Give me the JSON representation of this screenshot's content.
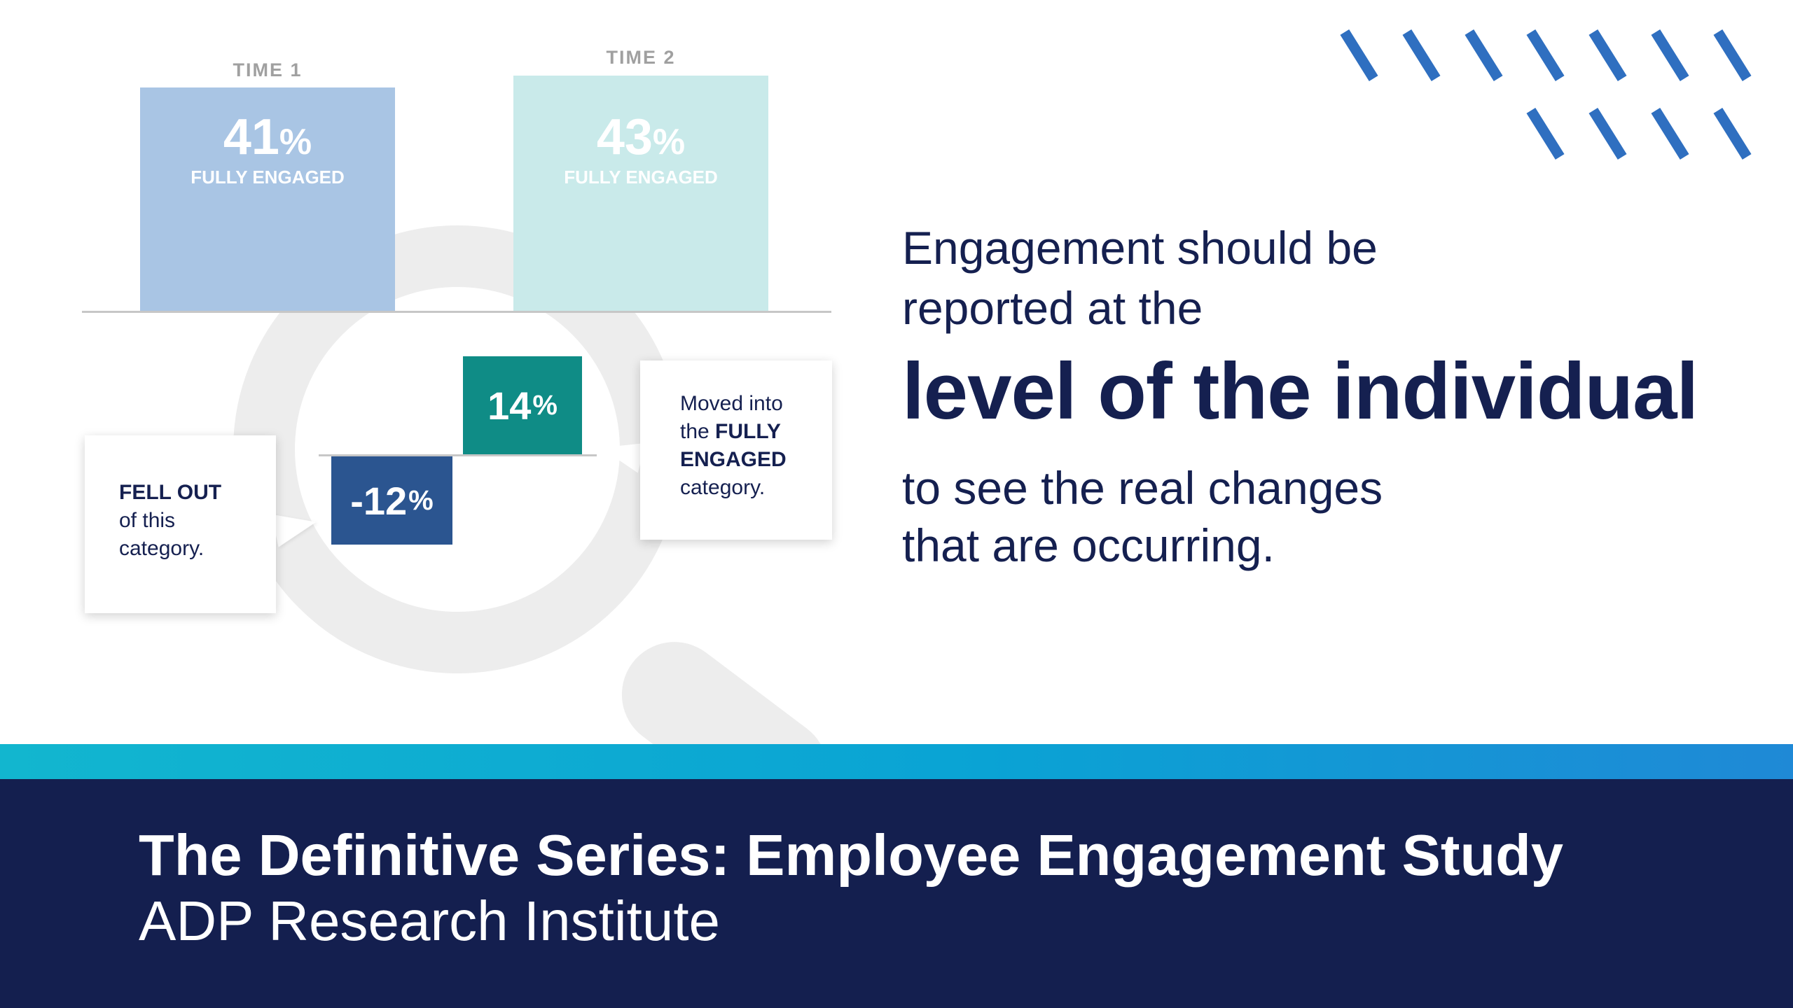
{
  "colors": {
    "navy": "#141f4f",
    "text_navy": "#152050",
    "teal": "#0f8c86",
    "blue": "#2b5590",
    "bar_time1": "#a9c5e4",
    "bar_time2": "#c9eaea",
    "accent_dash": "#2f6fc0"
  },
  "bars": {
    "time1": {
      "label": "TIME 1",
      "value": "41",
      "symbol": "%",
      "caption": "FULLY ENGAGED",
      "pct": 41
    },
    "time2": {
      "label": "TIME 2",
      "value": "43",
      "symbol": "%",
      "caption": "FULLY ENGAGED",
      "pct": 43
    }
  },
  "changes": {
    "gain": {
      "value": "14",
      "symbol": "%",
      "pct": 14
    },
    "loss": {
      "value": "-12",
      "symbol": "%",
      "pct": -12
    }
  },
  "callouts": {
    "left": {
      "bold": "FELL OUT",
      "line2": "of this",
      "line3": "category."
    },
    "right": {
      "line1": "Moved into",
      "line2_pre": "the ",
      "line2_bold": "FULLY",
      "line3_bold": "ENGAGED",
      "line4": "category."
    }
  },
  "headline": {
    "line1": "Engagement should be",
    "line2": "reported at the",
    "emphasis": "level of the individual",
    "line4": "to see the real changes",
    "line5": "that are occurring."
  },
  "footer": {
    "title": "The Definitive Series: Employee Engagement Study",
    "subtitle": "ADP Research Institute"
  },
  "decor": {
    "icon": "diagonal-dash-pattern"
  }
}
